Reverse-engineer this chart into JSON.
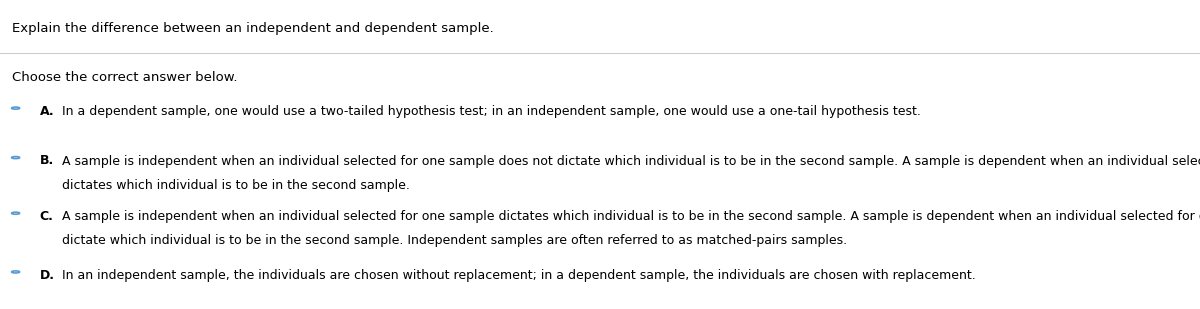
{
  "title": "Explain the difference between an independent and dependent sample.",
  "subtitle": "Choose the correct answer below.",
  "bg_color": "#ffffff",
  "text_color": "#000000",
  "circle_color": "#5b9bd5",
  "line_color": "#cccccc",
  "options": [
    {
      "label": "A.",
      "line1": "In a dependent sample, one would use a two-tailed hypothesis test; in an independent sample, one would use a one-tail hypothesis test.",
      "line2": null
    },
    {
      "label": "B.",
      "line1": "A sample is independent when an individual selected for one sample does not dictate which individual is to be in the second sample. A sample is dependent when an individual selected for one sample",
      "line2": "dictates which individual is to be in the second sample."
    },
    {
      "label": "C.",
      "line1": "A sample is independent when an individual selected for one sample dictates which individual is to be in the second sample. A sample is dependent when an individual selected for one sample does not",
      "line2": "dictate which individual is to be in the second sample. Independent samples are often referred to as matched-pairs samples."
    },
    {
      "label": "D.",
      "line1": "In an independent sample, the individuals are chosen without replacement; in a dependent sample, the individuals are chosen with replacement.",
      "line2": null
    }
  ],
  "figwidth": 12.0,
  "figheight": 3.09,
  "dpi": 100
}
